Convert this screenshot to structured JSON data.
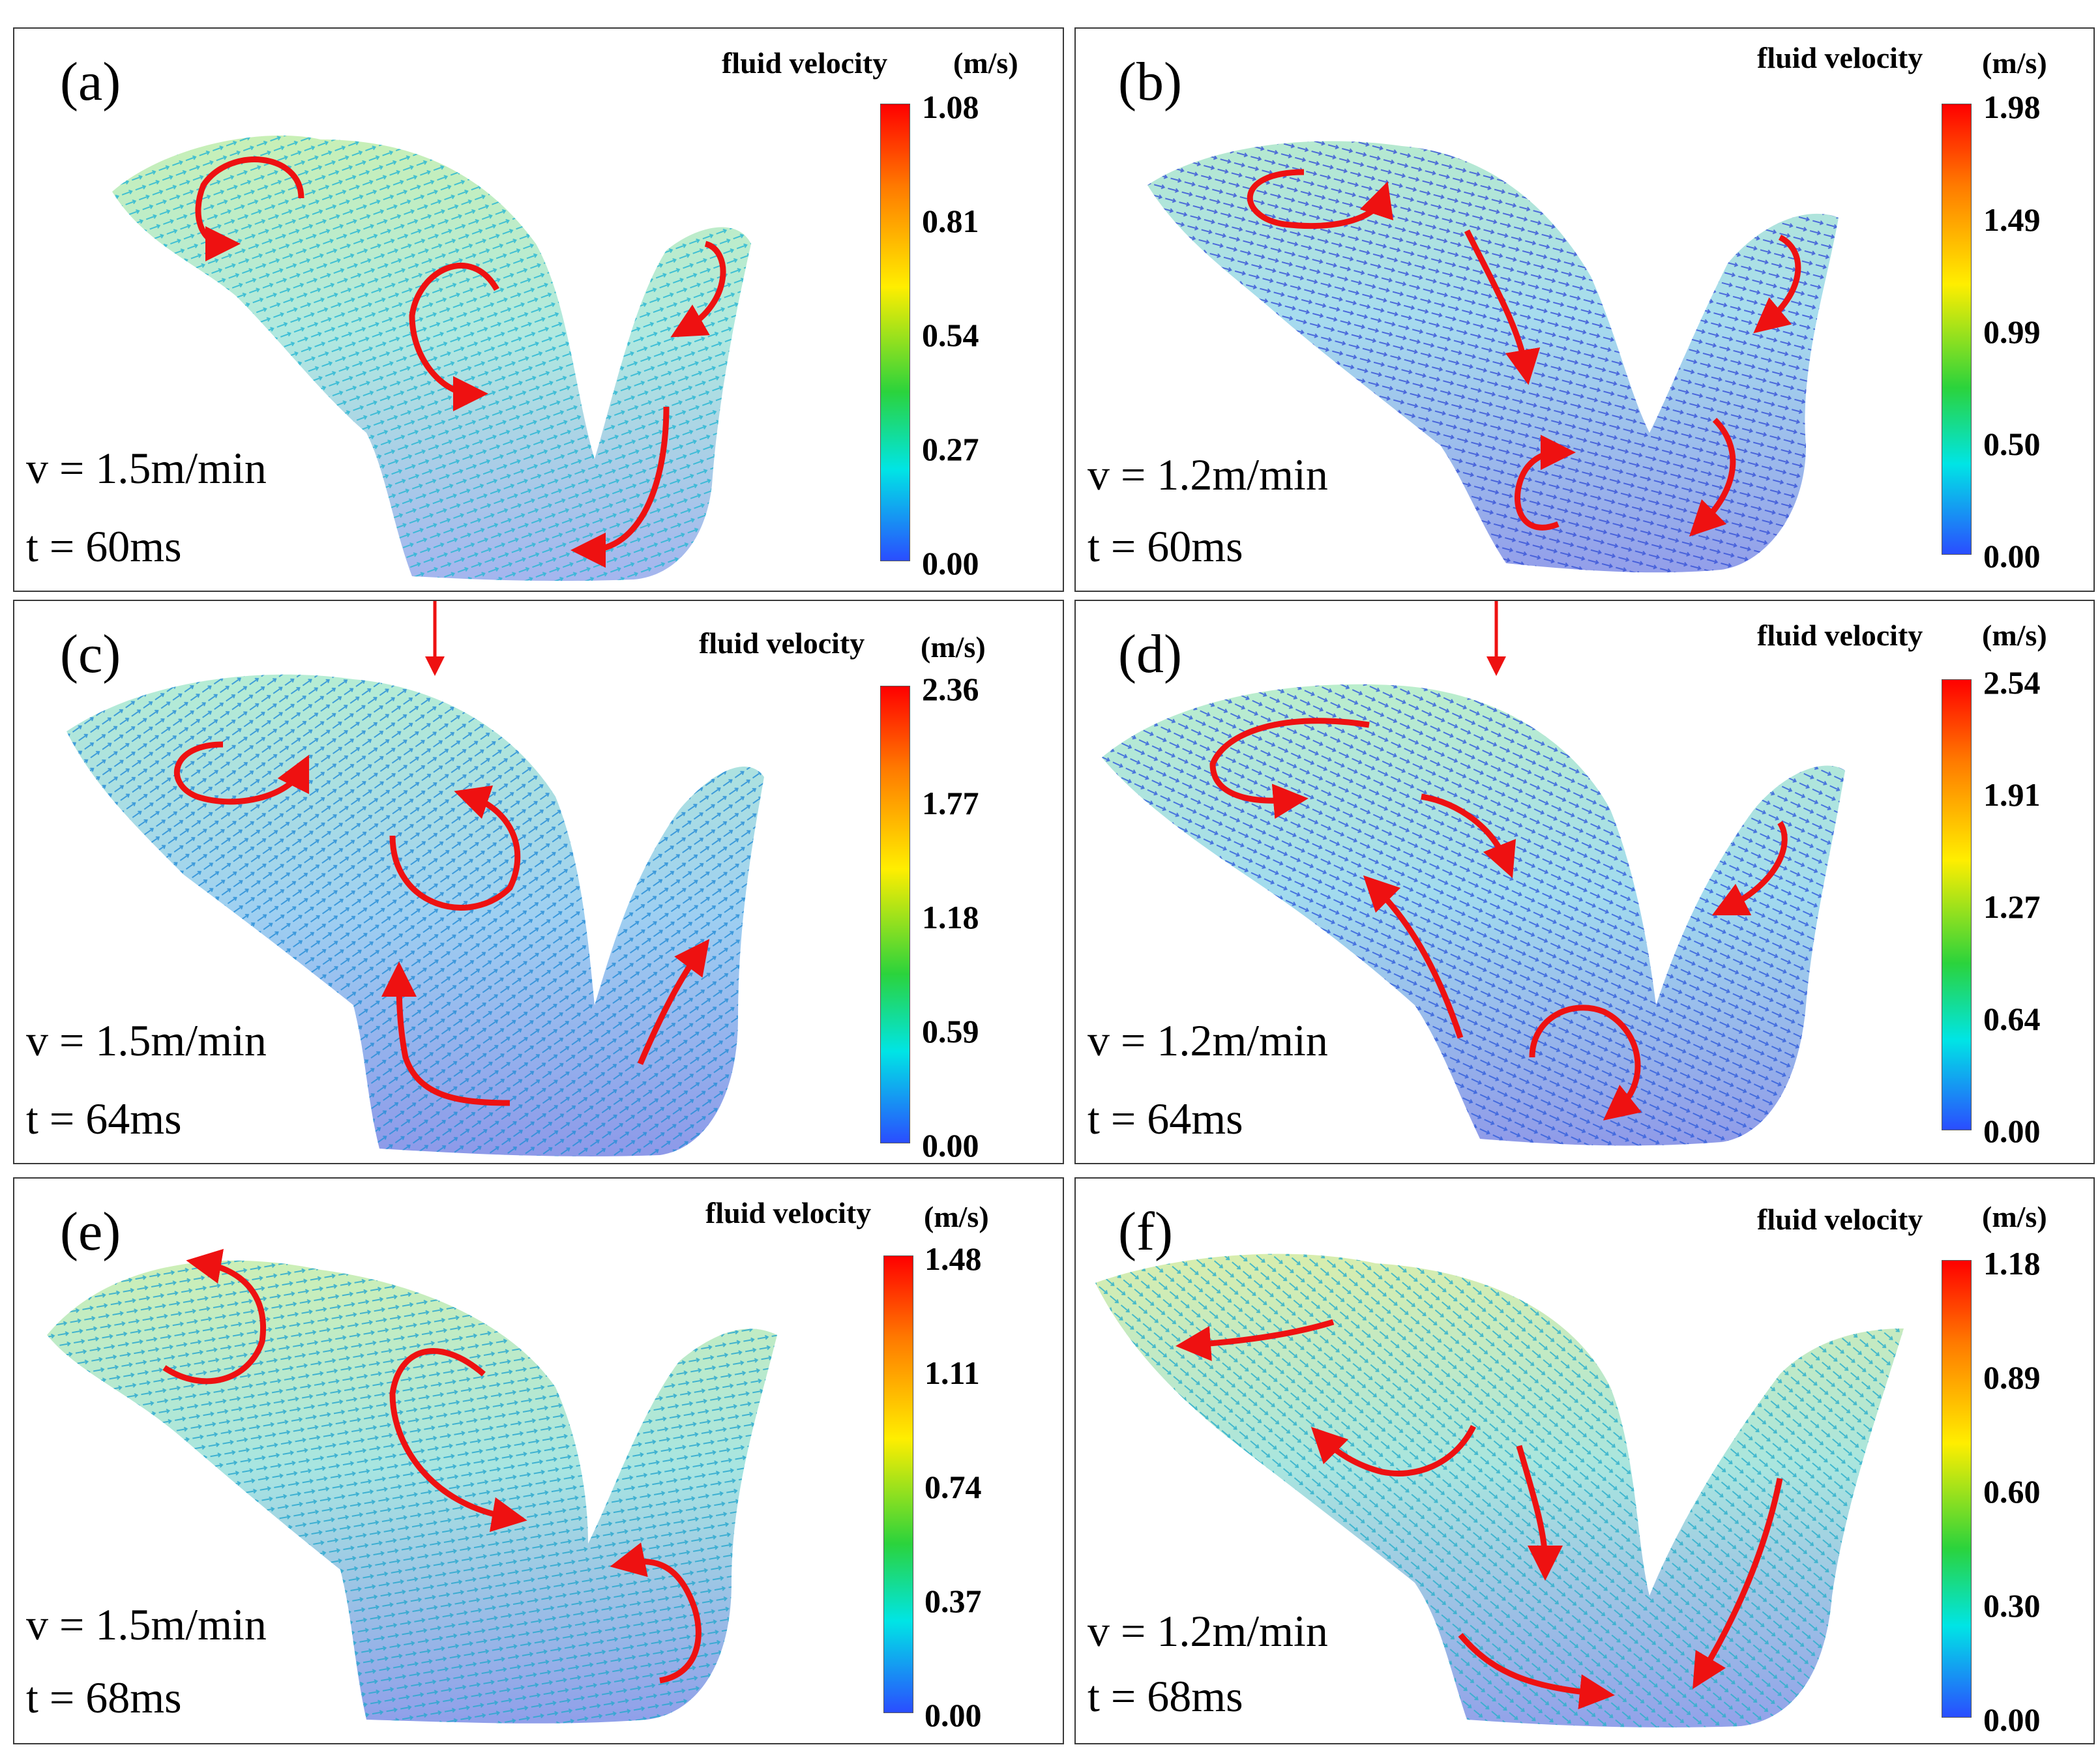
{
  "figure": {
    "panels": [
      {
        "label": "(a)",
        "velocity": "v = 1.5m/min",
        "time": "t = 60ms",
        "colorbar": {
          "title": "fluid velocity",
          "unit": "(m/s)",
          "ticks": [
            "1.08",
            "0.81",
            "0.54",
            "0.27",
            "0.00"
          ]
        }
      },
      {
        "label": "(b)",
        "velocity": "v = 1.2m/min",
        "time": "t = 60ms",
        "colorbar": {
          "title": "fluid velocity",
          "unit": "(m/s)",
          "ticks": [
            "1.98",
            "1.49",
            "0.99",
            "0.50",
            "0.00"
          ]
        }
      },
      {
        "label": "(c)",
        "velocity": "v = 1.5m/min",
        "time": "t = 64ms",
        "colorbar": {
          "title": "fluid velocity",
          "unit": "(m/s)",
          "ticks": [
            "2.36",
            "1.77",
            "1.18",
            "0.59",
            "0.00"
          ]
        }
      },
      {
        "label": "(d)",
        "velocity": "v = 1.2m/min",
        "time": "t = 64ms",
        "colorbar": {
          "title": "fluid velocity",
          "unit": "(m/s)",
          "ticks": [
            "2.54",
            "1.91",
            "1.27",
            "0.64",
            "0.00"
          ]
        }
      },
      {
        "label": "(e)",
        "velocity": "v = 1.5m/min",
        "time": "t = 68ms",
        "colorbar": {
          "title": "fluid velocity",
          "unit": "(m/s)",
          "ticks": [
            "1.48",
            "1.11",
            "0.74",
            "0.37",
            "0.00"
          ]
        }
      },
      {
        "label": "(f)",
        "velocity": "v = 1.2m/min",
        "time": "t = 68ms",
        "colorbar": {
          "title": "fluid velocity",
          "unit": "(m/s)",
          "ticks": [
            "1.18",
            "0.89",
            "0.60",
            "0.30",
            "0.00"
          ]
        }
      }
    ],
    "colors": {
      "arrow": "#ee1111",
      "vector_low": "#2a3fd8",
      "vector_mid": "#22c3d6",
      "vector_high": "#c8d800",
      "border": "#3a3a3a"
    }
  }
}
